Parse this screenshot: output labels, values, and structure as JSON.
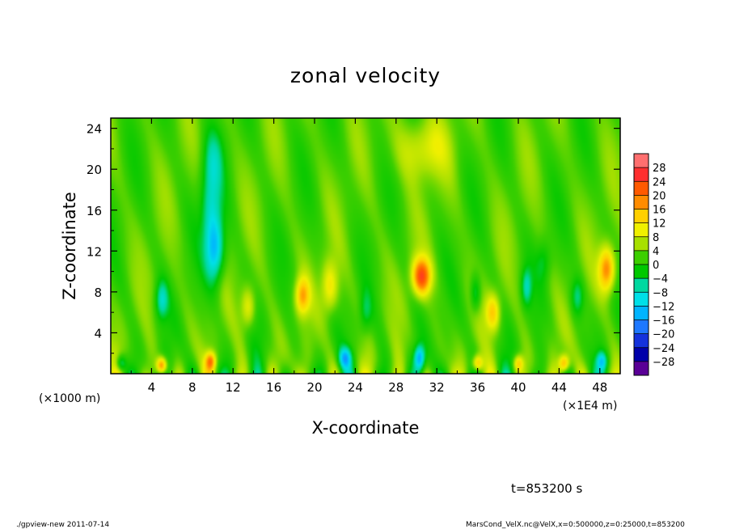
{
  "chart_data": {
    "type": "heatmap",
    "title": "zonal velocity",
    "xlabel": "X-coordinate",
    "ylabel": "Z-coordinate",
    "x_unit_left": "(×1000 m)",
    "x_unit_right": "(×1E4 m)",
    "x_range": [
      0,
      50
    ],
    "y_range": [
      0,
      25
    ],
    "x_ticks": [
      "4",
      "8",
      "12",
      "16",
      "20",
      "24",
      "28",
      "32",
      "36",
      "40",
      "44",
      "48"
    ],
    "y_ticks": [
      "4",
      "8",
      "12",
      "16",
      "20",
      "24"
    ],
    "colorbar": {
      "labels": [
        "28",
        "24",
        "20",
        "16",
        "12",
        "8",
        "4",
        "0",
        "−4",
        "−8",
        "−12",
        "−16",
        "−20",
        "−24",
        "−28"
      ],
      "colors": [
        "#ff6f6f",
        "#ff2f2f",
        "#ff5a00",
        "#ff8c00",
        "#ffd000",
        "#f0f000",
        "#a8e000",
        "#3ccf00",
        "#00c800",
        "#00d8a0",
        "#00e0e8",
        "#00b4ff",
        "#1e78ff",
        "#1432dc",
        "#0000aa",
        "#5a0096"
      ],
      "note": "colors ordered from top (highest) to bottom (lowest)"
    },
    "features": [
      {
        "x": 10.2,
        "z": 12.0,
        "value": -16,
        "sx": 0.9,
        "sz": 3.2
      },
      {
        "x": 9.8,
        "z": 16.5,
        "value": -9,
        "sx": 1.0,
        "sz": 4.0
      },
      {
        "x": 10.0,
        "z": 21.0,
        "value": -6,
        "sx": 1.0,
        "sz": 3.0
      },
      {
        "x": 30.5,
        "z": 9.5,
        "value": 22,
        "sx": 0.9,
        "sz": 1.8
      },
      {
        "x": 48.7,
        "z": 10.2,
        "value": 18,
        "sx": 0.8,
        "sz": 2.2
      },
      {
        "x": 18.8,
        "z": 7.6,
        "value": 14,
        "sx": 0.7,
        "sz": 1.8
      },
      {
        "x": 5.0,
        "z": 7.2,
        "value": -10,
        "sx": 0.6,
        "sz": 1.8
      },
      {
        "x": 21.5,
        "z": 8.5,
        "value": 10,
        "sx": 0.8,
        "sz": 2.5
      },
      {
        "x": 37.5,
        "z": 6.0,
        "value": 12,
        "sx": 0.7,
        "sz": 1.8
      },
      {
        "x": 35.8,
        "z": 7.8,
        "value": -8,
        "sx": 0.5,
        "sz": 1.8
      },
      {
        "x": 40.8,
        "z": 8.5,
        "value": -9,
        "sx": 0.5,
        "sz": 1.8
      },
      {
        "x": 45.8,
        "z": 7.5,
        "value": -8,
        "sx": 0.6,
        "sz": 1.8
      },
      {
        "x": 13.5,
        "z": 6.5,
        "value": 9,
        "sx": 0.7,
        "sz": 2.0
      },
      {
        "x": 25.0,
        "z": 6.0,
        "value": -6,
        "sx": 0.6,
        "sz": 2.0
      },
      {
        "x": 42.5,
        "z": 11.0,
        "value": -5,
        "sx": 0.7,
        "sz": 2.0
      },
      {
        "x": 30.5,
        "z": 22.0,
        "value": 8,
        "sx": 2.5,
        "sz": 3.0
      },
      {
        "x": 23.0,
        "z": 1.5,
        "value": -14,
        "sx": 0.6,
        "sz": 1.0
      },
      {
        "x": 30.3,
        "z": 1.5,
        "value": -16,
        "sx": 0.5,
        "sz": 1.2
      },
      {
        "x": 5.0,
        "z": 0.8,
        "value": 18,
        "sx": 0.5,
        "sz": 0.8
      },
      {
        "x": 9.8,
        "z": 1.2,
        "value": 16,
        "sx": 0.5,
        "sz": 0.9
      },
      {
        "x": 36.0,
        "z": 1.0,
        "value": 14,
        "sx": 0.5,
        "sz": 0.8
      },
      {
        "x": 40.0,
        "z": 1.0,
        "value": 12,
        "sx": 0.5,
        "sz": 0.8
      },
      {
        "x": 44.5,
        "z": 1.0,
        "value": 14,
        "sx": 0.5,
        "sz": 0.8
      },
      {
        "x": 48.2,
        "z": 1.2,
        "value": -12,
        "sx": 0.5,
        "sz": 0.9
      },
      {
        "x": 1.0,
        "z": 1.0,
        "value": -10,
        "sx": 0.5,
        "sz": 0.8
      }
    ]
  },
  "annotation": "t=853200 s",
  "footer_left": "./gpview-new   2011-07-14",
  "footer_right": "MarsCond_VelX.nc@VelX,x=0:500000,z=0:25000,t=853200"
}
